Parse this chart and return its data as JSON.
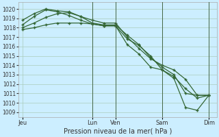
{
  "background_color": "#cceeff",
  "grid_color": "#aaccbb",
  "line_color": "#336633",
  "marker_color": "#336633",
  "title": "Pression niveau de la mer( hPa )",
  "ylabel_ticks": [
    1009,
    1010,
    1011,
    1012,
    1013,
    1014,
    1015,
    1016,
    1017,
    1018,
    1019,
    1020
  ],
  "ylim": [
    1008.5,
    1020.7
  ],
  "x_tick_labels": [
    "Jeu",
    "Lun",
    "Ven",
    "Sam",
    "Dim"
  ],
  "x_tick_positions": [
    0,
    18,
    24,
    36,
    48
  ],
  "xlim": [
    -1,
    50
  ],
  "vlines": [
    18,
    24,
    36,
    48
  ],
  "series1_x": [
    0,
    3,
    6,
    9,
    12,
    15,
    18,
    21,
    24,
    27,
    30,
    33,
    36,
    39,
    42,
    45,
    48
  ],
  "series1_y": [
    1018.8,
    1019.5,
    1020.0,
    1019.8,
    1019.7,
    1019.2,
    1018.5,
    1018.3,
    1018.3,
    1017.2,
    1016.2,
    1014.8,
    1013.8,
    1013.0,
    1011.0,
    1010.8,
    1010.8
  ],
  "series2_x": [
    0,
    3,
    6,
    9,
    12,
    15,
    18,
    21,
    24,
    27,
    30,
    33,
    36,
    39,
    42,
    45,
    48
  ],
  "series2_y": [
    1018.3,
    1019.2,
    1019.9,
    1019.7,
    1019.3,
    1018.8,
    1018.4,
    1018.2,
    1018.2,
    1016.8,
    1016.1,
    1015.0,
    1013.5,
    1012.8,
    1011.5,
    1010.5,
    1010.8
  ],
  "series3_x": [
    0,
    3,
    6,
    9,
    12,
    15,
    18,
    21,
    24,
    27,
    30,
    33,
    36,
    39,
    42,
    45,
    48
  ],
  "series3_y": [
    1018.0,
    1018.5,
    1019.1,
    1019.5,
    1019.6,
    1019.2,
    1018.8,
    1018.5,
    1018.5,
    1017.0,
    1015.8,
    1014.7,
    1014.0,
    1013.5,
    1012.5,
    1010.8,
    1010.8
  ],
  "series4_x": [
    0,
    3,
    6,
    9,
    12,
    15,
    18,
    21,
    24,
    27,
    30,
    33,
    36,
    39,
    42,
    45,
    48
  ],
  "series4_y": [
    1017.8,
    1018.0,
    1018.3,
    1018.5,
    1018.5,
    1018.5,
    1018.4,
    1018.2,
    1018.2,
    1016.2,
    1015.2,
    1013.8,
    1013.5,
    1012.6,
    1009.5,
    1009.2,
    1010.8
  ]
}
